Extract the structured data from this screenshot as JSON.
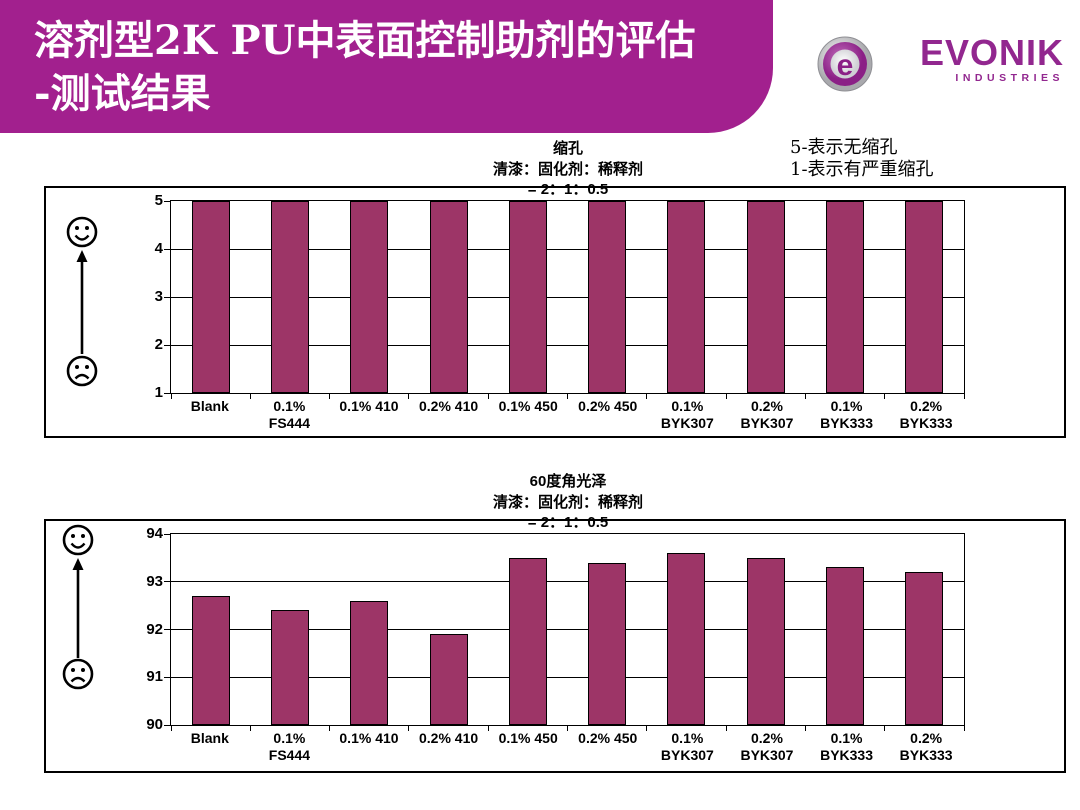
{
  "header": {
    "title_line1": "溶剂型2K PU中表面控制助剂的评估",
    "title_line2": "-测试结果",
    "banner_color": "#a2208e",
    "logo": {
      "brand": "EVONIK",
      "sub": "INDUSTRIES",
      "color": "#92278f"
    }
  },
  "note": {
    "line1": "5-表示无缩孔",
    "line2": "1-表示有严重缩孔"
  },
  "chart_data": [
    {
      "type": "bar",
      "title": "缩孔",
      "subtitle1": "清漆：固化剂：稀释剂",
      "subtitle2": "= 2：1：0.5",
      "categories": [
        [
          "Blank",
          ""
        ],
        [
          "0.1%",
          "FS444"
        ],
        [
          "0.1% 410",
          ""
        ],
        [
          "0.2% 410",
          ""
        ],
        [
          "0.1% 450",
          ""
        ],
        [
          "0.2% 450",
          ""
        ],
        [
          "0.1%",
          "BYK307"
        ],
        [
          "0.2%",
          "BYK307"
        ],
        [
          "0.1%",
          "BYK333"
        ],
        [
          "0.2%",
          "BYK333"
        ]
      ],
      "values": [
        5,
        5,
        5,
        5,
        5,
        5,
        5,
        5,
        5,
        5
      ],
      "ylim": [
        1,
        5
      ],
      "yticks": [
        1,
        2,
        3,
        4,
        5
      ],
      "bar_color": "#9d3567",
      "grid": true,
      "legend": "none",
      "annotation_good": "happy-face-high-score",
      "annotation_bad": "sad-face-low-score"
    },
    {
      "type": "bar",
      "title": "60度角光泽",
      "subtitle1": "清漆：固化剂：稀释剂",
      "subtitle2": "= 2：1：0.5",
      "categories": [
        [
          "Blank",
          ""
        ],
        [
          "0.1%",
          "FS444"
        ],
        [
          "0.1% 410",
          ""
        ],
        [
          "0.2% 410",
          ""
        ],
        [
          "0.1% 450",
          ""
        ],
        [
          "0.2% 450",
          ""
        ],
        [
          "0.1%",
          "BYK307"
        ],
        [
          "0.2%",
          "BYK307"
        ],
        [
          "0.1%",
          "BYK333"
        ],
        [
          "0.2%",
          "BYK333"
        ]
      ],
      "values": [
        92.7,
        92.4,
        92.6,
        91.9,
        93.5,
        93.4,
        93.6,
        93.5,
        93.3,
        93.2
      ],
      "ylim": [
        90,
        94
      ],
      "yticks": [
        90,
        91,
        92,
        93,
        94
      ],
      "bar_color": "#9d3567",
      "grid": true,
      "legend": "none",
      "annotation_good": "happy-face-high-score",
      "annotation_bad": "sad-face-low-score"
    }
  ]
}
